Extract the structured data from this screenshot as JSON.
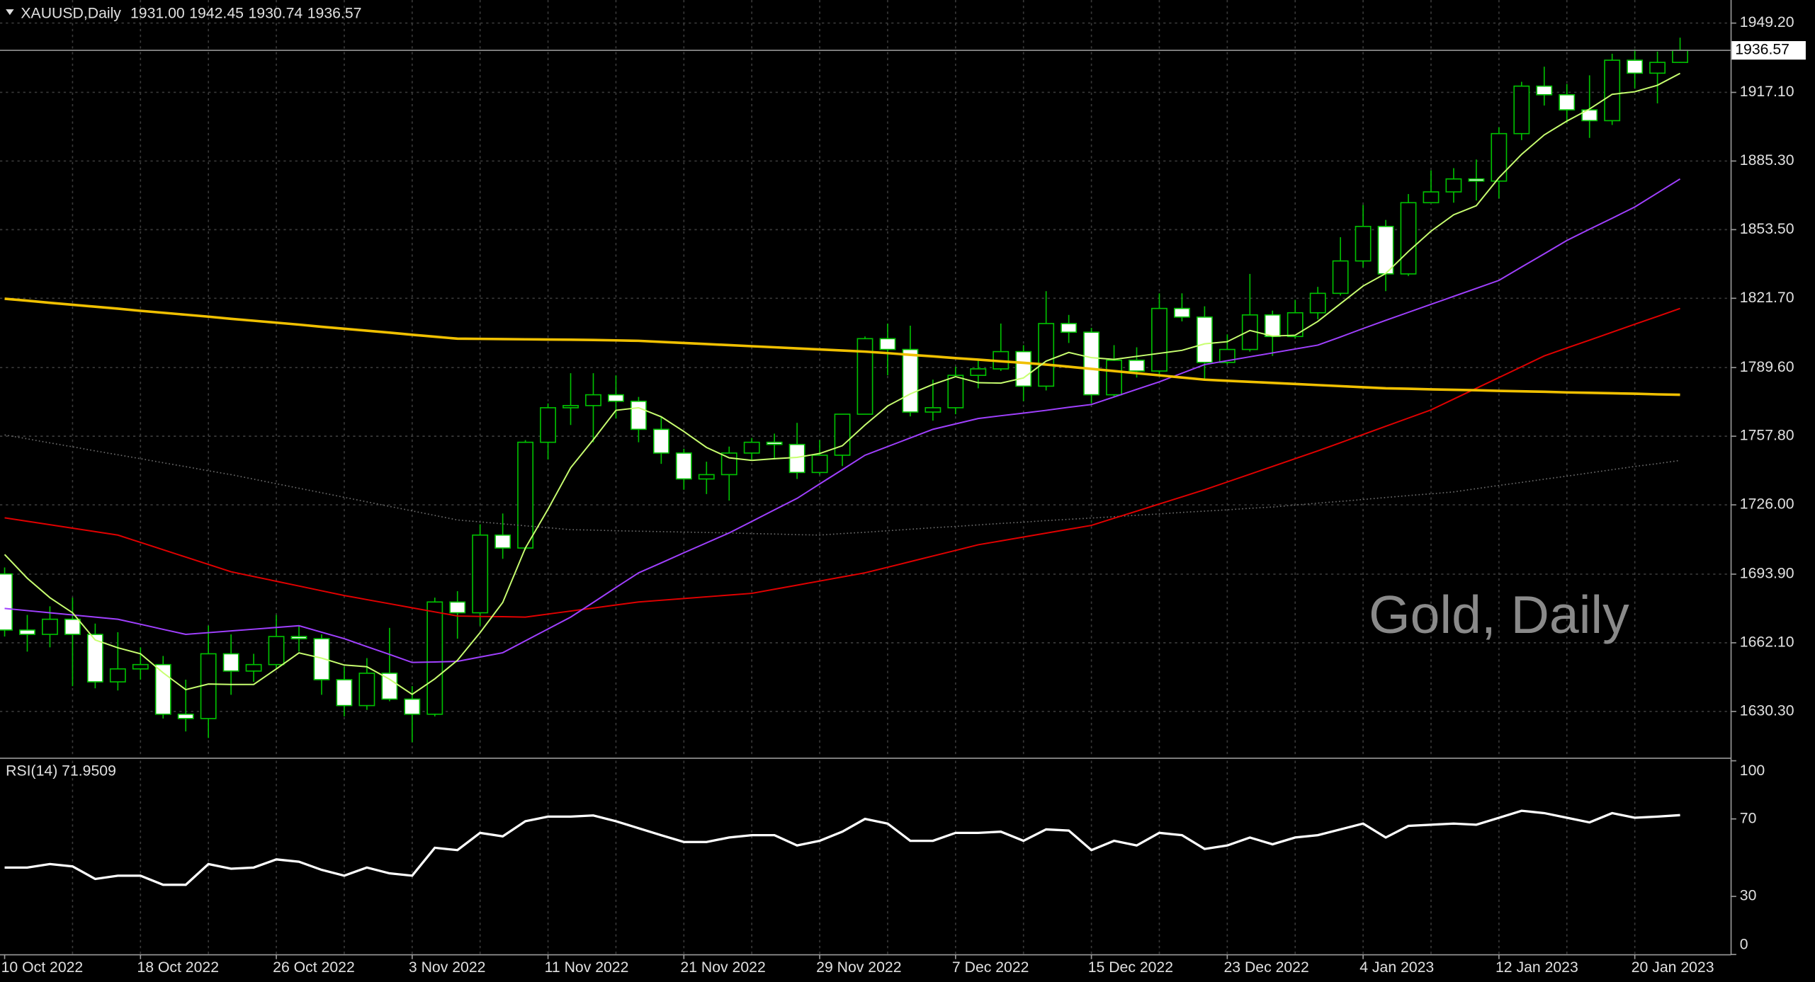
{
  "chart_data": [
    {
      "type": "candlestick",
      "title": "XAUUSD,Daily",
      "quote": [
        "1931.00",
        "1942.45",
        "1930.74",
        "1936.57"
      ],
      "watermark": "Gold, Daily",
      "categories": [
        "10 Oct 2022",
        null,
        null,
        null,
        null,
        null,
        "18 Oct 2022",
        null,
        null,
        null,
        null,
        null,
        "26 Oct 2022",
        null,
        null,
        null,
        null,
        null,
        "3 Nov 2022",
        null,
        null,
        null,
        null,
        null,
        "11 Nov 2022",
        null,
        null,
        null,
        null,
        null,
        "21 Nov 2022",
        null,
        null,
        null,
        null,
        null,
        "29 Nov 2022",
        null,
        null,
        null,
        null,
        null,
        "7 Dec 2022",
        null,
        null,
        null,
        null,
        null,
        "15 Dec 2022",
        null,
        null,
        null,
        null,
        null,
        "23 Dec 2022",
        null,
        null,
        null,
        null,
        null,
        "4 Jan 2023",
        null,
        null,
        null,
        null,
        null,
        "12 Jan 2023",
        null,
        null,
        null,
        null,
        null,
        "20 Jan 2023",
        null,
        null
      ],
      "open": [
        1694,
        1668,
        1666,
        1673,
        1666,
        1644,
        1650,
        1652,
        1629,
        1627,
        1657,
        1649,
        1652,
        1665,
        1664,
        1645,
        1633,
        1648,
        1636,
        1629,
        1681,
        1676,
        1712,
        1706,
        1755,
        1771,
        1772,
        1777,
        1774,
        1761,
        1750,
        1738,
        1740,
        1750,
        1755,
        1754,
        1741,
        1749,
        1768,
        1803,
        1798,
        1769,
        1771,
        1786,
        1789,
        1797,
        1781,
        1810,
        1806,
        1777,
        1793,
        1788,
        1817,
        1813,
        1792,
        1798,
        1814,
        1804,
        1815,
        1824,
        1839,
        1855,
        1833,
        1866,
        1871,
        1877,
        1876,
        1898,
        1920,
        1916,
        1909,
        1904,
        1932,
        1926,
        1931
      ],
      "high": [
        1697,
        1675,
        1679,
        1683,
        1671,
        1667,
        1660,
        1656,
        1645,
        1670,
        1666,
        1657,
        1675,
        1670,
        1666,
        1651,
        1655,
        1669,
        1642,
        1683,
        1686,
        1717,
        1722,
        1756,
        1773,
        1787,
        1787,
        1786,
        1776,
        1767,
        1752,
        1746,
        1753,
        1757,
        1759,
        1764,
        1756,
        1768,
        1804,
        1810,
        1809,
        1784,
        1790,
        1793,
        1810,
        1800,
        1825,
        1814,
        1808,
        1800,
        1799,
        1824,
        1824,
        1818,
        1805,
        1833,
        1816,
        1821,
        1827,
        1850,
        1865,
        1858,
        1870,
        1881,
        1882,
        1886,
        1901,
        1922,
        1929,
        1921,
        1925,
        1935,
        1937,
        1936,
        1942.45
      ],
      "low": [
        1665,
        1658,
        1660,
        1642,
        1641,
        1640,
        1645,
        1627,
        1621,
        1618,
        1638,
        1644,
        1650,
        1658,
        1638,
        1628,
        1631,
        1635,
        1616,
        1628,
        1664,
        1670,
        1701,
        1705,
        1747,
        1763,
        1755,
        1766,
        1755,
        1745,
        1733,
        1731,
        1728,
        1747,
        1747,
        1738,
        1740,
        1744,
        1768,
        1786,
        1767,
        1765,
        1768,
        1780,
        1788,
        1774,
        1779,
        1801,
        1773,
        1776,
        1785,
        1786,
        1811,
        1784,
        1791,
        1797,
        1795,
        1803,
        1812,
        1823,
        1836,
        1825,
        1832,
        1866,
        1866,
        1867,
        1868,
        1895,
        1911,
        1903,
        1896,
        1902,
        1919,
        1912,
        1930.74
      ],
      "close": [
        1668,
        1666,
        1673,
        1666,
        1644,
        1650,
        1652,
        1629,
        1627,
        1657,
        1649,
        1652,
        1665,
        1664,
        1645,
        1633,
        1648,
        1636,
        1629,
        1681,
        1676,
        1712,
        1706,
        1755,
        1771,
        1772,
        1777,
        1774,
        1761,
        1750,
        1738,
        1740,
        1750,
        1755,
        1754,
        1741,
        1749,
        1768,
        1803,
        1798,
        1769,
        1771,
        1786,
        1789,
        1797,
        1781,
        1810,
        1806,
        1777,
        1793,
        1788,
        1817,
        1813,
        1792,
        1798,
        1814,
        1804,
        1815,
        1824,
        1839,
        1855,
        1833,
        1866,
        1871,
        1877,
        1876,
        1898,
        1920,
        1916,
        1909,
        1904,
        1932,
        1926,
        1931,
        1936.57
      ],
      "bull_color": "#000000",
      "bear_color": "#ffffff",
      "wick_color": "#00c000",
      "series": [
        {
          "color": "#6e6e6e",
          "style": "dotted",
          "values": [
            1758.4,
            1756.6,
            1754.7,
            1752.9,
            1751,
            1749.2,
            1747.4,
            1745.5,
            1743.7,
            1741.8,
            1740,
            1737.9,
            1735.8,
            1733.7,
            1731.6,
            1729.5,
            1727.4,
            1725.3,
            1723.2,
            1721.1,
            1719,
            1718.1,
            1717.2,
            1716.3,
            1715.4,
            1714.5,
            1714.3,
            1714,
            1713.8,
            1713.6,
            1713.4,
            1713.2,
            1713,
            1712.7,
            1712.5,
            1712.2,
            1712,
            1712.7,
            1713.3,
            1714,
            1714.7,
            1715.4,
            1716,
            1716.7,
            1717.4,
            1718,
            1718.7,
            1719.3,
            1719.9,
            1720.5,
            1721.2,
            1721.8,
            1722.5,
            1723.1,
            1723.7,
            1724.4,
            1725,
            1725.9,
            1726.8,
            1727.6,
            1728.5,
            1729.4,
            1730.3,
            1731.1,
            1732,
            1733.5,
            1735,
            1736.4,
            1737.9,
            1739.3,
            1740.8,
            1742.3,
            1743.8,
            1745.1,
            1746.6
          ]
        },
        {
          "color": "#e00000",
          "style": "solid",
          "values": [
            1720,
            1718.4,
            1716.8,
            1715.2,
            1713.6,
            1712,
            1708.6,
            1705.2,
            1701.8,
            1698.4,
            1695,
            1692.8,
            1690.6,
            1688.4,
            1686.2,
            1684,
            1682.1,
            1680.2,
            1678.3,
            1676.4,
            1674.5,
            1674.3,
            1674.2,
            1674,
            1675.4,
            1676.8,
            1678.2,
            1679.6,
            1681,
            1681.8,
            1682.6,
            1683.4,
            1684.2,
            1685,
            1686.9,
            1688.8,
            1690.7,
            1692.6,
            1694.5,
            1697.1,
            1699.7,
            1702.3,
            1704.9,
            1707.5,
            1709.3,
            1711.1,
            1712.9,
            1714.7,
            1716.5,
            1719.8,
            1723.1,
            1726.4,
            1729.7,
            1733,
            1736.6,
            1740.2,
            1743.8,
            1747.4,
            1751,
            1754.8,
            1758.6,
            1762.4,
            1766.2,
            1770,
            1775,
            1780,
            1785,
            1790,
            1795,
            1798.7,
            1802.3,
            1806,
            1809.7,
            1813.3,
            1817
          ]
        },
        {
          "color": "#a040ff",
          "style": "solid",
          "values": [
            1678,
            1677,
            1676,
            1675,
            1674,
            1673,
            1670.7,
            1668.3,
            1666,
            1666.8,
            1667.6,
            1668.4,
            1669.2,
            1670,
            1667,
            1664,
            1660.3,
            1656.7,
            1653,
            1653.2,
            1653.5,
            1655.5,
            1657.5,
            1663,
            1668.5,
            1674,
            1680.8,
            1687.7,
            1694.5,
            1699.1,
            1703.8,
            1708.4,
            1713,
            1718.3,
            1723.7,
            1729,
            1735.7,
            1742.3,
            1749,
            1753,
            1757,
            1761,
            1763.5,
            1766,
            1767.3,
            1768.5,
            1769.8,
            1771.2,
            1772.5,
            1776,
            1779.5,
            1783,
            1787,
            1791,
            1792.8,
            1794.6,
            1796.4,
            1798.2,
            1800,
            1803.8,
            1807.7,
            1811.5,
            1815.2,
            1818.9,
            1822.6,
            1826.3,
            1830,
            1836.2,
            1842.3,
            1848.5,
            1853.7,
            1858.8,
            1864,
            1870.5,
            1877
          ]
        },
        {
          "color": "#f0c000",
          "style": "thick",
          "values": [
            1821.5,
            1820.6,
            1819.6,
            1818.7,
            1817.8,
            1816.9,
            1815.9,
            1815,
            1814.1,
            1813.2,
            1812.2,
            1811.3,
            1810.4,
            1809.5,
            1808.5,
            1807.6,
            1806.7,
            1805.8,
            1804.8,
            1803.9,
            1803,
            1802.9,
            1802.8,
            1802.7,
            1802.6,
            1802.5,
            1802.4,
            1802.2,
            1802,
            1801.5,
            1801,
            1800.5,
            1800,
            1799.5,
            1799,
            1798.5,
            1798,
            1797.5,
            1797,
            1796.3,
            1795.5,
            1794.8,
            1794,
            1793.3,
            1792.5,
            1791.8,
            1791,
            1790,
            1789,
            1788,
            1787,
            1786,
            1785,
            1784,
            1783.5,
            1783,
            1782.5,
            1782,
            1781.5,
            1781,
            1780.5,
            1780,
            1779.8,
            1779.5,
            1779.3,
            1779.1,
            1778.8,
            1778.6,
            1778.4,
            1778.1,
            1777.9,
            1777.7,
            1777.5,
            1777.2,
            1777
          ]
        },
        {
          "color": "#c8ff70",
          "style": "solid",
          "values": [
            1703,
            1692,
            1683,
            1676,
            1663.4,
            1659.8,
            1657,
            1648.2,
            1640.4,
            1643,
            1642.8,
            1642.8,
            1650,
            1657.4,
            1655,
            1651.8,
            1651,
            1645.2,
            1638.2,
            1645.4,
            1654,
            1666.8,
            1680.8,
            1706,
            1724,
            1743.2,
            1756.2,
            1769.8,
            1771,
            1766.8,
            1760,
            1752.6,
            1747.8,
            1746.6,
            1747.4,
            1748,
            1749.8,
            1753.4,
            1763,
            1771.8,
            1777.4,
            1781.8,
            1785.4,
            1782.6,
            1782.4,
            1784.8,
            1792.6,
            1796.6,
            1794.2,
            1793.4,
            1794.8,
            1796.2,
            1797.6,
            1800.6,
            1801.6,
            1806.8,
            1804.2,
            1804.6,
            1811,
            1819.2,
            1827.4,
            1833.2,
            1843.4,
            1852.8,
            1860.4,
            1864.6,
            1877.6,
            1888.4,
            1897.4,
            1903.8,
            1909.4,
            1916.2,
            1917.4,
            1920.4,
            1925.9
          ]
        }
      ],
      "ylim": [
        1608.9,
        1959.9
      ],
      "yticks": [
        {
          "value": 1949.2,
          "label": "1949.20"
        },
        {
          "value": 1917.1,
          "label": "1917.10"
        },
        {
          "value": 1885.3,
          "label": "1885.30"
        },
        {
          "value": 1853.5,
          "label": "1853.50"
        },
        {
          "value": 1821.7,
          "label": "1821.70"
        },
        {
          "value": 1789.6,
          "label": "1789.60"
        },
        {
          "value": 1757.8,
          "label": "1757.80"
        },
        {
          "value": 1726,
          "label": "1726.00"
        },
        {
          "value": 1693.9,
          "label": "1693.90"
        },
        {
          "value": 1662.1,
          "label": "1662.10"
        },
        {
          "value": 1630.3,
          "label": "1630.30"
        }
      ],
      "last_price": {
        "value": 1936.57,
        "label": "1936.57"
      },
      "grid": true
    },
    {
      "type": "line",
      "title": "RSI(14) 71.9509",
      "color": "#ffffff",
      "values": [
        44.9,
        44.9,
        46.7,
        45.5,
        39,
        40.7,
        40.7,
        36,
        36,
        46.7,
        44.3,
        44.9,
        49.1,
        47.9,
        43.7,
        40.7,
        44.9,
        41.9,
        40.7,
        55.1,
        53.9,
        62.8,
        61,
        68.8,
        71.2,
        71.2,
        71.8,
        68.8,
        65.2,
        61.6,
        58.1,
        58.1,
        60.4,
        61.6,
        61.6,
        56.3,
        58.7,
        63.4,
        70,
        67.6,
        58.7,
        58.7,
        62.8,
        62.8,
        63.4,
        58.7,
        64.6,
        64,
        53.9,
        58.7,
        56.3,
        62.8,
        61.6,
        54.5,
        56.3,
        60.4,
        56.9,
        60.4,
        61.6,
        64.6,
        67.6,
        60.4,
        66.4,
        67,
        67.6,
        67,
        70.6,
        74.2,
        73,
        70.6,
        68.2,
        73,
        70.6,
        71.2,
        71.9509
      ],
      "ylim": [
        0,
        100
      ],
      "yticks": [
        100,
        70,
        30,
        0
      ]
    }
  ]
}
